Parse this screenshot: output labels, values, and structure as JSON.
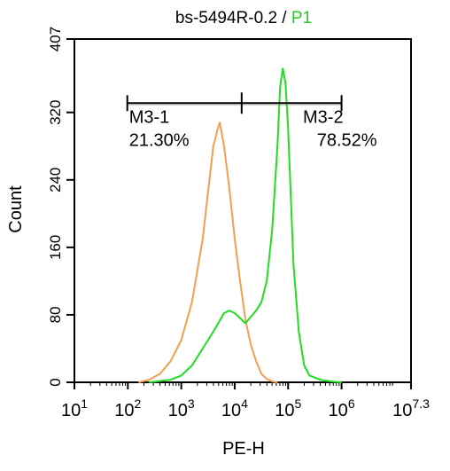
{
  "chart_data": {
    "type": "line",
    "title_main": "bs-5494R-0.2",
    "title_sep": " / ",
    "title_gate": "P1",
    "xlabel": "PE-H",
    "ylabel": "Count",
    "x_scale": "log10",
    "xlim": [
      1,
      7.3
    ],
    "ylim": [
      0,
      407
    ],
    "x_ticks": [
      {
        "exp": 1,
        "base": "10",
        "sup": "1"
      },
      {
        "exp": 2,
        "base": "10",
        "sup": "2"
      },
      {
        "exp": 3,
        "base": "10",
        "sup": "3"
      },
      {
        "exp": 4,
        "base": "10",
        "sup": "4"
      },
      {
        "exp": 5,
        "base": "10",
        "sup": "5"
      },
      {
        "exp": 6,
        "base": "10",
        "sup": "6"
      },
      {
        "exp": 7.3,
        "base": "10",
        "sup": "7.3"
      }
    ],
    "y_ticks": [
      "0",
      "80",
      "160",
      "240",
      "320",
      "407"
    ],
    "colors": {
      "orange": "#f0a050",
      "green": "#22dd22",
      "title_gate": "#22cc22",
      "axis": "#000000"
    },
    "series": [
      {
        "color": "#f0a050",
        "x": [
          2.2,
          2.4,
          2.6,
          2.8,
          3.0,
          3.2,
          3.4,
          3.5,
          3.6,
          3.7,
          3.72,
          3.8,
          3.9,
          4.0,
          4.1,
          4.2,
          4.3,
          4.4,
          4.5,
          4.6,
          4.7,
          4.8
        ],
        "y": [
          0,
          3,
          10,
          25,
          50,
          95,
          170,
          225,
          280,
          305,
          308,
          280,
          230,
          170,
          120,
          75,
          45,
          25,
          10,
          4,
          1,
          0
        ]
      },
      {
        "color": "#22dd22",
        "x": [
          2.4,
          2.8,
          3.0,
          3.2,
          3.4,
          3.6,
          3.8,
          3.9,
          4.0,
          4.2,
          4.4,
          4.5,
          4.6,
          4.7,
          4.8,
          4.85,
          4.9,
          4.95,
          5.0,
          5.05,
          5.1,
          5.2,
          5.3,
          5.4,
          5.6,
          5.8,
          6.0
        ],
        "y": [
          0,
          3,
          8,
          20,
          40,
          60,
          82,
          85,
          82,
          70,
          85,
          95,
          120,
          180,
          280,
          350,
          372,
          355,
          300,
          220,
          140,
          60,
          20,
          8,
          3,
          1,
          0
        ]
      }
    ],
    "gates": {
      "y": 331,
      "divider_x": 4.13,
      "left": {
        "name": "M3-1",
        "pct": "21.30%",
        "x_from": 1.99,
        "x_to": 4.13
      },
      "right": {
        "name": "M3-2",
        "pct": "78.52%",
        "x_from": 4.13,
        "x_to": 6.0
      }
    }
  }
}
